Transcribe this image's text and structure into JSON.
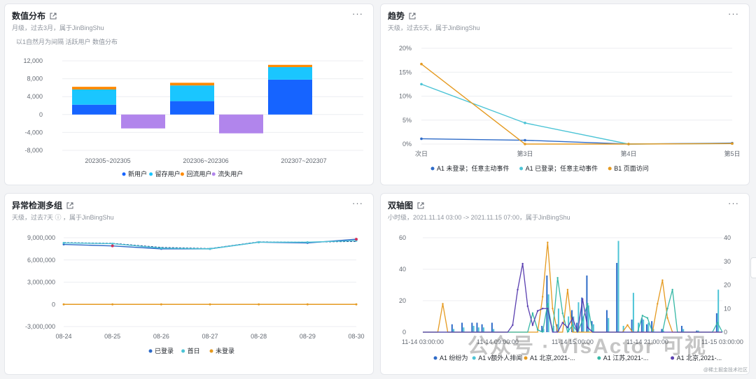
{
  "cards": [
    {
      "title": "数值分布",
      "subtitle": "月级，过去3月，属于JinBingShu",
      "note": "以1自然月为间隔 活跃用户 数值分布"
    },
    {
      "title": "趋势",
      "subtitle": "天级，过去5天，属于JinBingShu"
    },
    {
      "title": "异常检测多组",
      "subtitle": "天级，过去7天 ⓘ ，属于JinBingShu"
    },
    {
      "title": "双轴图",
      "subtitle": "小时级，2021.11.14 03:00 -> 2021.11.15 07:00，属于JinBingShu"
    }
  ],
  "more_label": "···",
  "watermark": "公众号 · VisActor 可视",
  "watermark_small": "@稀土掘金技术社区",
  "chart_data": [
    {
      "type": "bar",
      "stacked": true,
      "categories": [
        "202305~202305",
        "202306~202306",
        "202307~202307"
      ],
      "ylim": [
        -8000,
        12000
      ],
      "yticks": [
        "12,000",
        "8,000",
        "4,000",
        "0",
        "-4,000",
        "-8,000"
      ],
      "series": [
        {
          "name": "新用户",
          "color": "#1664ff",
          "values": [
            2200,
            3000,
            7800
          ]
        },
        {
          "name": "留存用户",
          "color": "#1ac6ff",
          "values": [
            3400,
            3500,
            2800
          ]
        },
        {
          "name": "回流用户",
          "color": "#ff8a00",
          "values": [
            600,
            600,
            500
          ]
        },
        {
          "name": "流失用户",
          "color": "#b185ec",
          "values": [
            -3100,
            -4200,
            0
          ]
        }
      ],
      "legend_position": "bottom"
    },
    {
      "type": "line",
      "x": [
        "次日",
        "第3日",
        "第4日",
        "第5日"
      ],
      "ylim": [
        0,
        20
      ],
      "yticks": [
        "20%",
        "15%",
        "10%",
        "5%",
        "0%"
      ],
      "series": [
        {
          "name": "A1 未登录；任意主动事件",
          "color": "#2e6bc8",
          "values": [
            1.1,
            0.8,
            0,
            0.2
          ]
        },
        {
          "name": "A1 已登录；任意主动事件",
          "color": "#4cc4d6",
          "values": [
            12.5,
            4.4,
            0,
            0.1
          ]
        },
        {
          "name": "B1 页面访问",
          "color": "#e59a20",
          "values": [
            16.7,
            0,
            0,
            0.1
          ]
        }
      ],
      "legend_position": "bottom"
    },
    {
      "type": "line",
      "x": [
        "08-24",
        "08-25",
        "08-26",
        "08-27",
        "08-28",
        "08-29",
        "08-30"
      ],
      "ylim": [
        -3000000,
        9000000
      ],
      "yticks": [
        "9,000,000",
        "6,000,000",
        "3,000,000",
        "0",
        "-3,000,000"
      ],
      "series": [
        {
          "name": "已登录",
          "color": "#2e6bc8",
          "values": [
            8100000,
            7900000,
            7500000,
            7500000,
            8400000,
            8300000,
            8800000
          ]
        },
        {
          "name": "首日",
          "color": "#4cc4d6",
          "values": [
            8300000,
            8200000,
            7600000,
            7500000,
            8400000,
            8400000,
            8600000
          ]
        },
        {
          "name": "未登录",
          "color": "#e59a20",
          "values": [
            0,
            0,
            0,
            0,
            0,
            0,
            0
          ]
        }
      ],
      "expected_band": {
        "name": "expected",
        "values": [
          8350000,
          8250000,
          7700000,
          7550000,
          8450000,
          8400000,
          8500000
        ]
      },
      "legend_position": "bottom"
    },
    {
      "type": "bar-line",
      "x_ticks": [
        "11-14 03:00:00",
        "11-14 09:00:00",
        "11-14 15:00:00",
        "11-14 21:00:00",
        "11-15 03:00:00"
      ],
      "ylim_left": [
        0,
        60
      ],
      "ylim_right": [
        0,
        40
      ],
      "yticks_left": [
        "60",
        "40",
        "20",
        "0"
      ],
      "yticks_right": [
        "40",
        "30",
        "20",
        "10",
        "0"
      ],
      "series": [
        {
          "name": "A1 纷纷为",
          "color": "#2e6bc8",
          "kind": "bar",
          "values": [
            0,
            0,
            0,
            0,
            0,
            0,
            5,
            0,
            6,
            0,
            6,
            6,
            5,
            0,
            6,
            0,
            0,
            0,
            0,
            0,
            0,
            0,
            0,
            0,
            4,
            36,
            0,
            5,
            0,
            0,
            14,
            6,
            22,
            36,
            7,
            0,
            0,
            14,
            0,
            44,
            0,
            0,
            8,
            0,
            9,
            5,
            7,
            0,
            2,
            0,
            0,
            0,
            4,
            0,
            0,
            1,
            0,
            0,
            0,
            12,
            0
          ]
        },
        {
          "name": "A1 v额外人排闻",
          "color": "#4cc4d6",
          "kind": "bar",
          "values": [
            0,
            0,
            0,
            0,
            0,
            0,
            2,
            0,
            3,
            0,
            4,
            3,
            3,
            0,
            2,
            0,
            0,
            0,
            0,
            0,
            0,
            0,
            0,
            0,
            2,
            24,
            4,
            15,
            0,
            10,
            10,
            19,
            10,
            17,
            5,
            0,
            0,
            9,
            0,
            58,
            4,
            0,
            25,
            6,
            8,
            6,
            2,
            0,
            1,
            0,
            0,
            0,
            2,
            0,
            0,
            1,
            0,
            0,
            0,
            27,
            0
          ]
        },
        {
          "name": "A1 北京,2021-...",
          "color": "#e59a20",
          "kind": "line",
          "values": [
            0,
            0,
            0,
            0,
            12,
            0,
            0,
            0,
            0,
            0,
            0,
            0,
            0,
            0,
            0,
            0,
            0,
            0,
            0,
            0,
            0,
            0,
            0,
            0,
            15,
            38,
            10,
            0,
            0,
            18,
            0,
            0,
            0,
            0,
            0,
            0,
            0,
            0,
            0,
            0,
            0,
            3,
            0,
            0,
            0,
            0,
            0,
            12,
            22,
            6,
            0,
            0,
            0,
            0,
            0,
            0,
            0,
            0,
            0,
            0,
            0
          ]
        },
        {
          "name": "A1 江苏,2021-...",
          "color": "#36b8a6",
          "kind": "line",
          "values": [
            0,
            0,
            0,
            0,
            0,
            0,
            0,
            0,
            0,
            0,
            0,
            0,
            0,
            0,
            0,
            0,
            0,
            0,
            0,
            0,
            0,
            0,
            8,
            1,
            0,
            12,
            0,
            23,
            8,
            0,
            3,
            0,
            5,
            12,
            0,
            0,
            0,
            0,
            0,
            0,
            0,
            0,
            0,
            0,
            7,
            6,
            0,
            0,
            0,
            10,
            18,
            0,
            0,
            0,
            0,
            0,
            0,
            0,
            0,
            4,
            0
          ]
        },
        {
          "name": "A1 北京,2021-...",
          "color": "#5a3fb0",
          "kind": "line",
          "values": [
            0,
            0,
            0,
            0,
            0,
            0,
            0,
            0,
            0,
            0,
            0,
            0,
            0,
            0,
            0,
            0,
            0,
            0,
            3,
            18,
            29,
            11,
            3,
            9,
            10,
            10,
            0,
            0,
            4,
            2,
            6,
            0,
            14,
            2,
            0,
            0,
            0,
            0,
            0,
            0,
            0,
            0,
            0,
            0,
            0,
            0,
            0,
            0,
            0,
            0,
            0,
            0,
            0,
            0,
            0,
            0,
            0,
            0,
            0,
            0,
            0
          ]
        }
      ],
      "legend_position": "bottom"
    }
  ]
}
